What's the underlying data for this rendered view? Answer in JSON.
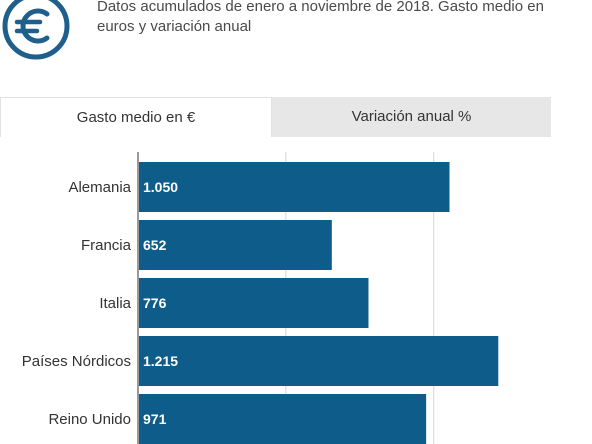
{
  "header": {
    "subtitle": "Datos acumulados de enero a noviembre de 2018. Gasto medio en euros y variación anual",
    "logo_icon": "euro-icon",
    "logo_color": "#1f5f8b"
  },
  "tabs": [
    {
      "label": "Gasto medio en €",
      "active": true
    },
    {
      "label": "Variación anual %",
      "active": false
    }
  ],
  "chart_data": {
    "type": "bar",
    "orientation": "horizontal",
    "categories": [
      "Alemania",
      "Francia",
      "Italia",
      "Países Nórdicos",
      "Reino Unido"
    ],
    "values": [
      1050,
      652,
      776,
      1215,
      971
    ],
    "value_labels": [
      "1.050",
      "652",
      "776",
      "1.215",
      "971"
    ],
    "xlim": [
      0,
      1400
    ],
    "grid": true,
    "bar_color": "#0d5c8a"
  }
}
